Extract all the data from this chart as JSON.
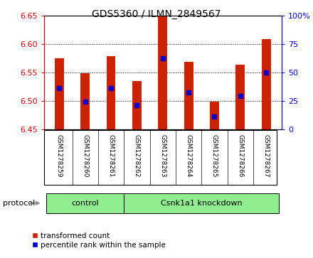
{
  "title": "GDS5360 / ILMN_2849567",
  "samples": [
    "GSM1278259",
    "GSM1278260",
    "GSM1278261",
    "GSM1278262",
    "GSM1278263",
    "GSM1278264",
    "GSM1278265",
    "GSM1278266",
    "GSM1278267"
  ],
  "bar_bottoms": [
    6.45,
    6.45,
    6.45,
    6.45,
    6.45,
    6.45,
    6.45,
    6.45,
    6.45
  ],
  "bar_tops": [
    6.575,
    6.548,
    6.578,
    6.535,
    6.648,
    6.568,
    6.498,
    6.563,
    6.608
  ],
  "blue_dot_values": [
    6.522,
    6.498,
    6.522,
    6.492,
    6.575,
    6.515,
    6.472,
    6.508,
    6.55
  ],
  "ylim": [
    6.45,
    6.65
  ],
  "yticks_left": [
    6.45,
    6.5,
    6.55,
    6.6,
    6.65
  ],
  "yticks_right": [
    0,
    25,
    50,
    75,
    100
  ],
  "left_color": "#cc0000",
  "right_color": "#0000cc",
  "bar_color": "#cc2200",
  "dot_color": "#0000cc",
  "protocol_groups": [
    {
      "label": "control",
      "start": 0,
      "end": 3
    },
    {
      "label": "Csnk1a1 knockdown",
      "start": 3,
      "end": 9
    }
  ],
  "protocol_label": "protocol",
  "protocol_bg": "#90ee90",
  "sample_box_bg": "#d3d3d3",
  "figsize": [
    4.4,
    3.63
  ],
  "dpi": 100
}
